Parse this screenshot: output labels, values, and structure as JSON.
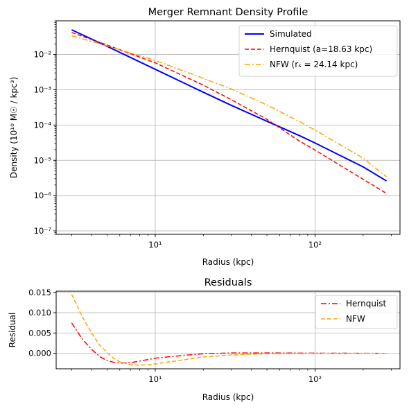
{
  "chart_data": [
    {
      "type": "line",
      "title": "Merger Remnant Density Profile",
      "xlabel": "Radius (kpc)",
      "ylabel": "Density (10¹⁰ M☉ / kpc³)",
      "xscale": "log",
      "yscale": "log",
      "xlim": [
        2.4,
        340
      ],
      "ylim": [
        8e-08,
        0.09
      ],
      "xticks": [
        {
          "value": 10,
          "label": "10¹"
        },
        {
          "value": 100,
          "label": "10²"
        }
      ],
      "yticks": [
        {
          "value": 1e-07,
          "label": "10⁻⁷"
        },
        {
          "value": 1e-06,
          "label": "10⁻⁶"
        },
        {
          "value": 1e-05,
          "label": "10⁻⁵"
        },
        {
          "value": 0.0001,
          "label": "10⁻⁴"
        },
        {
          "value": 0.001,
          "label": "10⁻³"
        },
        {
          "value": 0.01,
          "label": "10⁻²"
        }
      ],
      "grid": true,
      "legend": "top-right",
      "series": [
        {
          "name": "Simulated",
          "color": "#0000ff",
          "style": "solid",
          "x": [
            3,
            5,
            10,
            20,
            30,
            50,
            80,
            100,
            200,
            280
          ],
          "y": [
            0.05,
            0.017,
            0.0038,
            0.00085,
            0.00036,
            0.000128,
            5e-05,
            3.1e-05,
            6.5e-06,
            2.6e-06
          ]
        },
        {
          "name": "Hernquist (a=18.63 kpc)",
          "color": "#ff0000",
          "style": "dashed",
          "x": [
            3,
            5,
            10,
            20,
            30,
            50,
            80,
            100,
            200,
            280
          ],
          "y": [
            0.042,
            0.0185,
            0.0058,
            0.00135,
            0.00052,
            0.000145,
            3.5e-05,
            1.95e-05,
            2.9e-06,
            1.15e-06
          ]
        },
        {
          "name": "NFW (rₛ = 24.14 kpc)",
          "color": "#ffa500",
          "style": "dashdot",
          "x": [
            3,
            5,
            10,
            20,
            30,
            50,
            80,
            100,
            200,
            280
          ],
          "y": [
            0.034,
            0.0175,
            0.0068,
            0.0021,
            0.00105,
            0.00037,
            0.000125,
            7.2e-05,
            1.15e-05,
            3.4e-06
          ]
        }
      ]
    },
    {
      "type": "line",
      "title": "Residuals",
      "xlabel": "Radius (kpc)",
      "ylabel": "Residual",
      "xscale": "log",
      "yscale": "linear",
      "xlim": [
        2.4,
        340
      ],
      "ylim": [
        -0.0038,
        0.0153
      ],
      "xticks": [
        {
          "value": 10,
          "label": "10¹"
        },
        {
          "value": 100,
          "label": "10²"
        }
      ],
      "yticks": [
        {
          "value": 0,
          "label": "0.000"
        },
        {
          "value": 0.005,
          "label": "0.005"
        },
        {
          "value": 0.01,
          "label": "0.010"
        },
        {
          "value": 0.015,
          "label": "0.015"
        }
      ],
      "grid": true,
      "legend": "top-right",
      "series": [
        {
          "name": "Hernquist",
          "color": "#ff0000",
          "style": "dashdot",
          "x": [
            3,
            3.5,
            4,
            4.5,
            5,
            5.5,
            6,
            7,
            8,
            10,
            15,
            20,
            30,
            50,
            100,
            280
          ],
          "y": [
            0.0075,
            0.0035,
            0.001,
            -0.0008,
            -0.0018,
            -0.0022,
            -0.0024,
            -0.0023,
            -0.0019,
            -0.0012,
            -0.0005,
            -0.0001,
            0.0001,
            0.0001,
            5e-05,
            0.0
          ]
        },
        {
          "name": "NFW",
          "color": "#ffa500",
          "style": "dashed",
          "x": [
            3,
            3.5,
            4,
            4.5,
            5,
            5.5,
            6,
            7,
            8,
            9,
            10,
            15,
            20,
            30,
            50,
            100,
            280
          ],
          "y": [
            0.0145,
            0.009,
            0.005,
            0.002,
            0.0002,
            -0.0012,
            -0.0021,
            -0.0028,
            -0.0029,
            -0.0028,
            -0.0026,
            -0.0016,
            -0.0009,
            -0.0004,
            -0.0001,
            0.0,
            0.0
          ]
        }
      ]
    }
  ]
}
